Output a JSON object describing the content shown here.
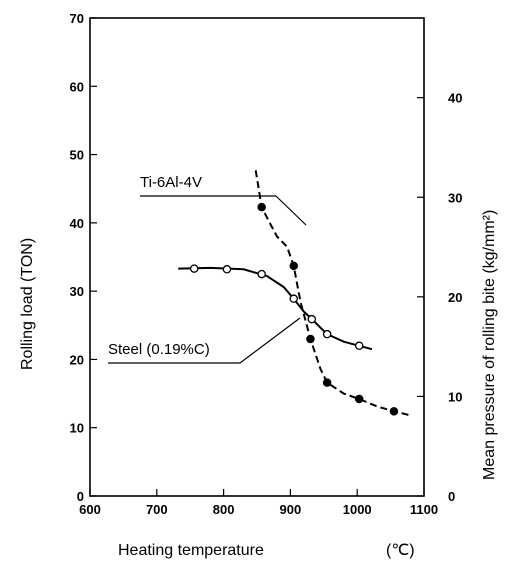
{
  "chart_data": {
    "type": "line",
    "xlabel": "Heating temperature",
    "xunit": "(℃)",
    "ylabel": "Rolling load (TON)",
    "y2label": "Mean pressure of rolling bite (kg/mm²)",
    "xlim": [
      600,
      1100
    ],
    "ylim": [
      0,
      70
    ],
    "y2lim": [
      0,
      48
    ],
    "x_ticks": [
      "600",
      "700",
      "800",
      "900",
      "1000",
      "1100"
    ],
    "y_ticks": [
      "0",
      "10",
      "20",
      "30",
      "40",
      "50",
      "60",
      "70"
    ],
    "y2_ticks": [
      "0",
      "10",
      "20",
      "30",
      "40"
    ],
    "grid": false,
    "series": [
      {
        "name": "Steel (0.19%C)",
        "marker": "open-circle",
        "line_style": "solid",
        "points": [
          [
            756,
            33.3
          ],
          [
            805,
            33.2
          ],
          [
            857,
            32.5
          ],
          [
            905,
            28.9
          ],
          [
            932,
            25.9
          ],
          [
            955,
            23.7
          ],
          [
            1003,
            22.0
          ]
        ],
        "curve": [
          [
            732,
            33.3
          ],
          [
            780,
            33.4
          ],
          [
            830,
            33.2
          ],
          [
            865,
            32.2
          ],
          [
            890,
            30.6
          ],
          [
            905,
            28.9
          ],
          [
            920,
            27.0
          ],
          [
            932,
            25.9
          ],
          [
            955,
            23.7
          ],
          [
            980,
            22.6
          ],
          [
            1003,
            22.0
          ],
          [
            1022,
            21.5
          ]
        ]
      },
      {
        "name": "Ti-6Al-4V",
        "marker": "filled-circle",
        "line_style": "dashed",
        "points": [
          [
            857,
            42.3
          ],
          [
            905,
            33.7
          ],
          [
            930,
            23.0
          ],
          [
            955,
            16.6
          ],
          [
            1003,
            14.2
          ],
          [
            1055,
            12.4
          ]
        ],
        "curve": [
          [
            848,
            47.7
          ],
          [
            857,
            42.3
          ],
          [
            868,
            40.2
          ],
          [
            880,
            38.0
          ],
          [
            895,
            36.5
          ],
          [
            905,
            33.7
          ],
          [
            915,
            28.5
          ],
          [
            930,
            23.0
          ],
          [
            945,
            18.6
          ],
          [
            955,
            16.6
          ],
          [
            980,
            15.0
          ],
          [
            1003,
            14.2
          ],
          [
            1030,
            13.1
          ],
          [
            1055,
            12.4
          ],
          [
            1080,
            11.8
          ]
        ]
      }
    ],
    "annotations": [
      "Ti-6Al-4V",
      "Steel (0.19%C)"
    ]
  }
}
